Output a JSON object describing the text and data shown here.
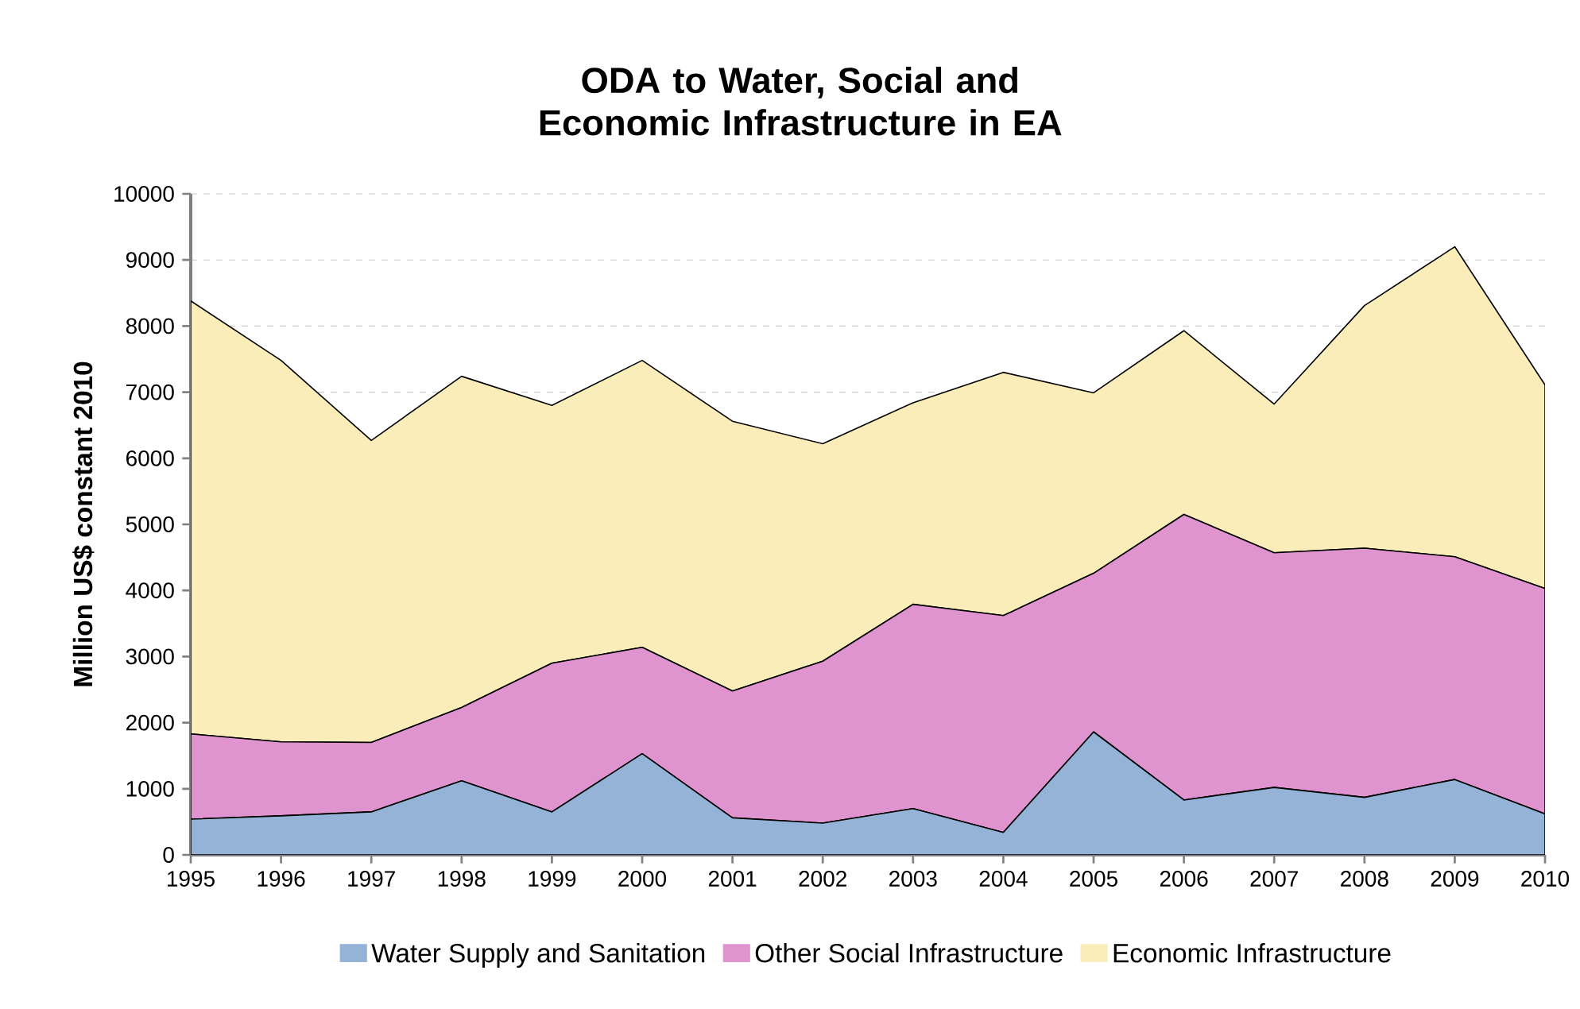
{
  "chart_data": {
    "type": "area",
    "stacked": true,
    "title": "ODA to Water, Social and Economic Infrastructure in EA",
    "ylabel": "Million US$ constant 2010",
    "categories": [
      "1995",
      "1996",
      "1997",
      "1998",
      "1999",
      "2000",
      "2001",
      "2002",
      "2003",
      "2004",
      "2005",
      "2006",
      "2007",
      "2008",
      "2009",
      "2010"
    ],
    "series": [
      {
        "name": "Water Supply and Sanitation",
        "color": "#95b3d7",
        "values": [
          540,
          590,
          650,
          1120,
          650,
          1530,
          560,
          480,
          700,
          340,
          1860,
          830,
          1020,
          870,
          1140,
          620
        ]
      },
      {
        "name": "Other Social Infrastructure",
        "color": "#e094cf",
        "values": [
          1290,
          1120,
          1050,
          1110,
          2250,
          1610,
          1920,
          2450,
          3090,
          3280,
          2400,
          4320,
          3550,
          3770,
          3370,
          3410
        ]
      },
      {
        "name": "Economic Infrastructure",
        "color": "#faedb9",
        "values": [
          6550,
          5770,
          4570,
          5010,
          3900,
          4340,
          4080,
          3290,
          3050,
          3680,
          2730,
          2780,
          2250,
          3670,
          4690,
          3080
        ]
      }
    ],
    "ylim": [
      0,
      10000
    ],
    "yticks": [
      0,
      1000,
      2000,
      3000,
      4000,
      5000,
      6000,
      7000,
      8000,
      9000,
      10000
    ],
    "grid": "y",
    "legend": "bottom"
  }
}
